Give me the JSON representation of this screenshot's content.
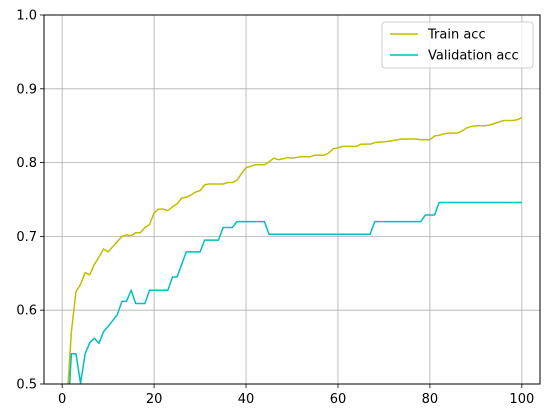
{
  "chart_data": {
    "type": "line",
    "title": "",
    "xlabel": "",
    "ylabel": "",
    "xlim": [
      -3.95,
      103.95
    ],
    "ylim": [
      0.5,
      1.0
    ],
    "xticks": [
      0,
      20,
      40,
      60,
      80,
      100
    ],
    "yticks": [
      0.5,
      0.6,
      0.7,
      0.8,
      0.9,
      1.0
    ],
    "xtick_labels": [
      "0",
      "20",
      "40",
      "60",
      "80",
      "100"
    ],
    "ytick_labels": [
      "0.5",
      "0.6",
      "0.7",
      "0.8",
      "0.9",
      "1.0"
    ],
    "grid": true,
    "legend_position": "top-right",
    "series": [
      {
        "name": "Train acc",
        "color": "#bfbf00",
        "x": [
          1,
          2,
          3,
          4,
          5,
          6,
          7,
          8,
          9,
          10,
          11,
          12,
          13,
          14,
          15,
          16,
          17,
          18,
          19,
          20,
          21,
          22,
          23,
          24,
          25,
          26,
          27,
          28,
          29,
          30,
          31,
          32,
          33,
          34,
          35,
          36,
          37,
          38,
          39,
          40,
          41,
          42,
          43,
          44,
          45,
          46,
          47,
          48,
          49,
          50,
          51,
          52,
          53,
          54,
          55,
          56,
          57,
          58,
          59,
          60,
          61,
          62,
          63,
          64,
          65,
          66,
          67,
          68,
          69,
          70,
          71,
          72,
          73,
          74,
          75,
          76,
          77,
          78,
          79,
          80,
          81,
          82,
          83,
          84,
          85,
          86,
          87,
          88,
          89,
          90,
          91,
          92,
          93,
          94,
          95,
          96,
          97,
          98,
          99,
          100
        ],
        "values": [
          0.47,
          0.57,
          0.625,
          0.635,
          0.651,
          0.648,
          0.662,
          0.672,
          0.683,
          0.679,
          0.686,
          0.693,
          0.7,
          0.702,
          0.701,
          0.705,
          0.705,
          0.712,
          0.716,
          0.732,
          0.737,
          0.737,
          0.735,
          0.74,
          0.744,
          0.752,
          0.753,
          0.756,
          0.76,
          0.762,
          0.77,
          0.771,
          0.771,
          0.771,
          0.771,
          0.773,
          0.773,
          0.776,
          0.785,
          0.793,
          0.795,
          0.797,
          0.797,
          0.797,
          0.801,
          0.806,
          0.804,
          0.805,
          0.807,
          0.806,
          0.807,
          0.808,
          0.808,
          0.808,
          0.81,
          0.81,
          0.81,
          0.813,
          0.819,
          0.82,
          0.822,
          0.822,
          0.822,
          0.822,
          0.825,
          0.825,
          0.825,
          0.827,
          0.828,
          0.828,
          0.829,
          0.83,
          0.831,
          0.832,
          0.832,
          0.832,
          0.832,
          0.831,
          0.831,
          0.831,
          0.836,
          0.837,
          0.839,
          0.84,
          0.84,
          0.84,
          0.843,
          0.847,
          0.849,
          0.85,
          0.85,
          0.85,
          0.851,
          0.853,
          0.855,
          0.857,
          0.857,
          0.857,
          0.858,
          0.861
        ]
      },
      {
        "name": "Validation acc",
        "color": "#00bfbf",
        "x": [
          1,
          2,
          3,
          4,
          5,
          6,
          7,
          8,
          9,
          10,
          11,
          12,
          13,
          14,
          15,
          16,
          17,
          18,
          19,
          20,
          21,
          22,
          23,
          24,
          25,
          26,
          27,
          28,
          29,
          30,
          31,
          32,
          33,
          34,
          35,
          36,
          37,
          38,
          39,
          40,
          41,
          42,
          43,
          44,
          45,
          46,
          47,
          48,
          49,
          50,
          51,
          52,
          53,
          54,
          55,
          56,
          57,
          58,
          59,
          60,
          61,
          62,
          63,
          64,
          65,
          66,
          67,
          68,
          69,
          70,
          71,
          72,
          73,
          74,
          75,
          76,
          77,
          78,
          79,
          80,
          81,
          82,
          83,
          84,
          85,
          86,
          87,
          88,
          89,
          90,
          91,
          92,
          93,
          94,
          95,
          96,
          97,
          98,
          99,
          100
        ],
        "values": [
          0.43,
          0.541,
          0.541,
          0.501,
          0.541,
          0.556,
          0.562,
          0.555,
          0.571,
          0.578,
          0.586,
          0.594,
          0.612,
          0.612,
          0.627,
          0.609,
          0.609,
          0.609,
          0.627,
          0.627,
          0.627,
          0.627,
          0.627,
          0.645,
          0.645,
          0.662,
          0.679,
          0.679,
          0.679,
          0.679,
          0.695,
          0.695,
          0.695,
          0.695,
          0.712,
          0.712,
          0.712,
          0.72,
          0.72,
          0.72,
          0.72,
          0.72,
          0.72,
          0.72,
          0.703,
          0.703,
          0.703,
          0.703,
          0.703,
          0.703,
          0.703,
          0.703,
          0.703,
          0.703,
          0.703,
          0.703,
          0.703,
          0.703,
          0.703,
          0.703,
          0.703,
          0.703,
          0.703,
          0.703,
          0.703,
          0.703,
          0.703,
          0.72,
          0.72,
          0.72,
          0.72,
          0.72,
          0.72,
          0.72,
          0.72,
          0.72,
          0.72,
          0.72,
          0.729,
          0.729,
          0.729,
          0.746,
          0.746,
          0.746,
          0.746,
          0.746,
          0.746,
          0.746,
          0.746,
          0.746,
          0.746,
          0.746,
          0.746,
          0.746,
          0.746,
          0.746,
          0.746,
          0.746,
          0.746,
          0.746
        ]
      }
    ]
  }
}
